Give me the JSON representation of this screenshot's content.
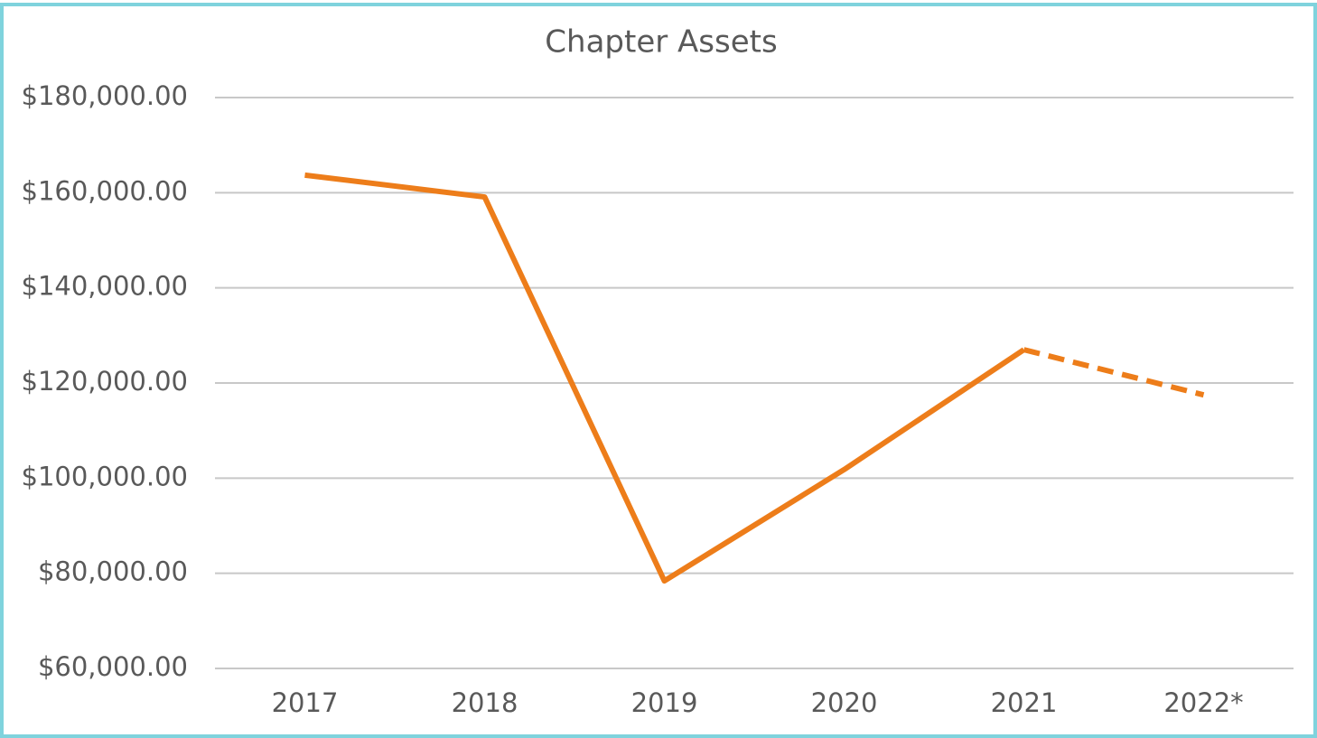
{
  "chart_data": {
    "type": "line",
    "title": "Chapter Assets",
    "categories": [
      "2017",
      "2018",
      "2019",
      "2020",
      "2021",
      "2022*"
    ],
    "values": [
      163700,
      159100,
      78400,
      101800,
      127000,
      117500
    ],
    "color": "#ed7d1a",
    "dashed_last_segment": true,
    "ylim": [
      60000,
      180000
    ],
    "yticks": [
      {
        "value": 60000,
        "label": "$60,000.00"
      },
      {
        "value": 80000,
        "label": "$80,000.00"
      },
      {
        "value": 100000,
        "label": "$100,000.00"
      },
      {
        "value": 120000,
        "label": "$120,000.00"
      },
      {
        "value": 140000,
        "label": "$140,000.00"
      },
      {
        "value": 160000,
        "label": "$160,000.00"
      },
      {
        "value": 180000,
        "label": "$180,000.00"
      }
    ],
    "grid": true
  }
}
